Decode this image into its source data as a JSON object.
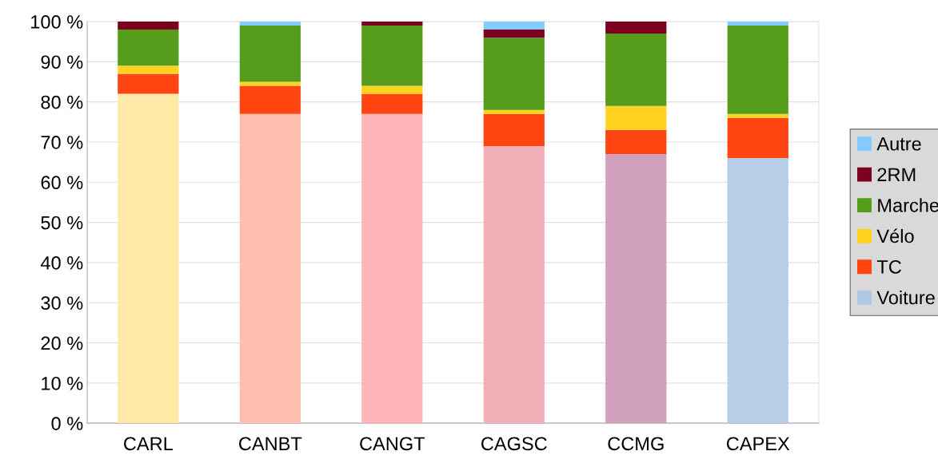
{
  "chart_data": {
    "type": "bar",
    "stacked": true,
    "categories": [
      "CARL",
      "CANBT",
      "CANGT",
      "CAGSC",
      "CCMG",
      "CAPEX"
    ],
    "series": [
      {
        "name": "Voiture",
        "color": "#b0c8e2",
        "colors": [
          "#ffeaa8",
          "#ffbfae",
          "#ffb6b8",
          "#f0b0b8",
          "#d0a0bc",
          "#b8cde6"
        ],
        "values": [
          82,
          77,
          77,
          69,
          67,
          66
        ]
      },
      {
        "name": "TC",
        "color": "#ff4511",
        "values": [
          5,
          7,
          5,
          8,
          6,
          10
        ]
      },
      {
        "name": "Vélo",
        "color": "#ffd320",
        "values": [
          2,
          1,
          2,
          1,
          6,
          1
        ]
      },
      {
        "name": "Marche",
        "color": "#579d1c",
        "values": [
          9,
          14,
          15,
          18,
          18,
          22
        ]
      },
      {
        "name": "2RM",
        "color": "#7e0021",
        "values": [
          2,
          0,
          1,
          2,
          3,
          0
        ]
      },
      {
        "name": "Autre",
        "color": "#83caff",
        "values": [
          0,
          1,
          0,
          2,
          0,
          1
        ]
      }
    ],
    "ylim": [
      0,
      100
    ],
    "yticks": [
      {
        "value": 0,
        "label": "0 %"
      },
      {
        "value": 10,
        "label": "10 %"
      },
      {
        "value": 20,
        "label": "20 %"
      },
      {
        "value": 30,
        "label": "30 %"
      },
      {
        "value": 40,
        "label": "40 %"
      },
      {
        "value": 50,
        "label": "50 %"
      },
      {
        "value": 60,
        "label": "60 %"
      },
      {
        "value": 70,
        "label": "70 %"
      },
      {
        "value": 80,
        "label": "80 %"
      },
      {
        "value": 90,
        "label": "90 %"
      },
      {
        "value": 100,
        "label": "100 %"
      }
    ],
    "grid": "y",
    "legend": "right"
  }
}
